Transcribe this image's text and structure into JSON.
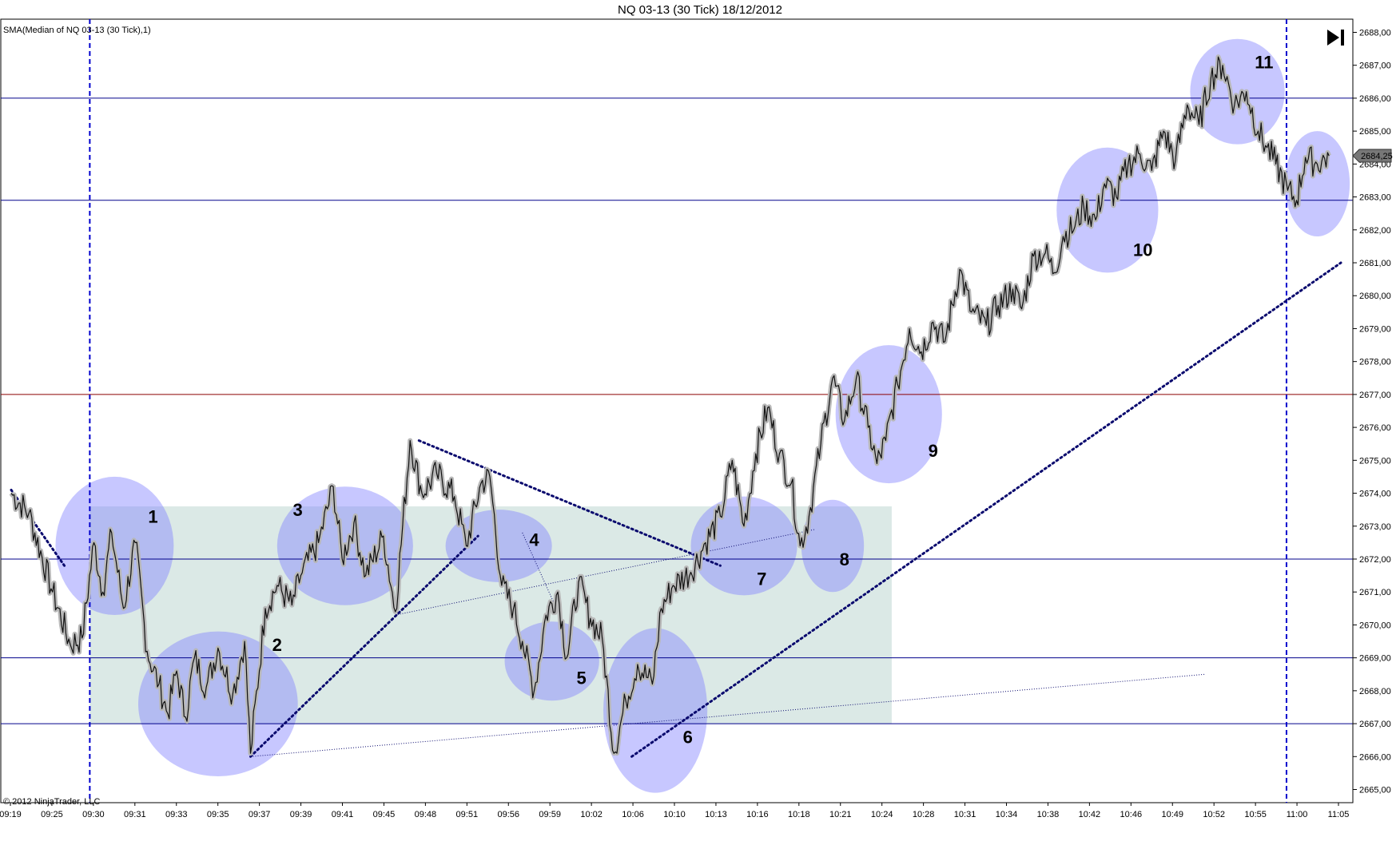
{
  "window": {
    "title": "NQ 03-13 (30 Tick)  18/12/2012",
    "indicator_label": "SMA(Median of NQ 03-13 (30 Tick),1)",
    "copyright": "© 2012 NinjaTrader, LLC",
    "goto_end_icon": "skip-to-end-icon"
  },
  "chart_data": {
    "type": "line",
    "title": "NQ 03-13 (30 Tick)  18/12/2012",
    "series": [
      {
        "name": "SMA(Median of NQ 03-13 (30 Tick),1)",
        "points": [
          [
            0,
            2674.0
          ],
          [
            3,
            2673.4
          ],
          [
            7,
            2671.0
          ],
          [
            10,
            2669.4
          ],
          [
            12,
            2669.6
          ],
          [
            14,
            2672.5
          ],
          [
            15.5,
            2671.0
          ],
          [
            17,
            2672.8
          ],
          [
            19,
            2670.5
          ],
          [
            21,
            2672.5
          ],
          [
            23,
            2669.2
          ],
          [
            25,
            2668.2
          ],
          [
            26.5,
            2667.3
          ],
          [
            28,
            2668.6
          ],
          [
            29.5,
            2667.2
          ],
          [
            31,
            2669.0
          ],
          [
            33,
            2668.1
          ],
          [
            35,
            2669.3
          ],
          [
            37.5,
            2667.9
          ],
          [
            39.5,
            2669.5
          ],
          [
            40.5,
            2666.1
          ],
          [
            43,
            2670.5
          ],
          [
            45,
            2671.2
          ],
          [
            47.5,
            2670.6
          ],
          [
            49,
            2671.5
          ],
          [
            52,
            2672.5
          ],
          [
            54.5,
            2674.2
          ],
          [
            56,
            2672.0
          ],
          [
            58,
            2673.1
          ],
          [
            60,
            2671.5
          ],
          [
            63,
            2672.7
          ],
          [
            65,
            2670.4
          ],
          [
            67.5,
            2675.6
          ],
          [
            69.5,
            2674.0
          ],
          [
            72,
            2674.6
          ],
          [
            75,
            2673.9
          ],
          [
            77,
            2672.4
          ],
          [
            79.5,
            2674.3
          ],
          [
            81,
            2674.5
          ],
          [
            83,
            2671.2
          ],
          [
            85,
            2670.5
          ],
          [
            86.5,
            2669.5
          ],
          [
            88.5,
            2668.0
          ],
          [
            90.5,
            2670.3
          ],
          [
            92.5,
            2671.0
          ],
          [
            94,
            2669.0
          ],
          [
            96,
            2671.3
          ],
          [
            98,
            2670.2
          ],
          [
            100,
            2669.6
          ],
          [
            102,
            2666.1
          ],
          [
            104,
            2667.7
          ],
          [
            106,
            2668.8
          ],
          [
            108.5,
            2668.2
          ],
          [
            110,
            2670.5
          ],
          [
            112,
            2671.2
          ],
          [
            115,
            2671.6
          ],
          [
            117.5,
            2672.5
          ],
          [
            120,
            2673.3
          ],
          [
            122,
            2675.0
          ],
          [
            124,
            2673.0
          ],
          [
            126,
            2675.2
          ],
          [
            128,
            2676.6
          ],
          [
            130,
            2675.2
          ],
          [
            132,
            2674.3
          ],
          [
            133.5,
            2672.4
          ],
          [
            135,
            2673.3
          ],
          [
            137,
            2675.5
          ],
          [
            139,
            2677.5
          ],
          [
            141,
            2676.2
          ],
          [
            143,
            2677.5
          ],
          [
            145,
            2676.0
          ],
          [
            146.5,
            2674.9
          ],
          [
            148,
            2675.6
          ],
          [
            150,
            2677.3
          ],
          [
            152,
            2679.0
          ],
          [
            154,
            2678.3
          ],
          [
            156,
            2679.2
          ],
          [
            158,
            2678.6
          ],
          [
            160.5,
            2680.8
          ],
          [
            162.5,
            2679.5
          ],
          [
            165,
            2679.1
          ],
          [
            167,
            2679.7
          ],
          [
            169.5,
            2680.2
          ],
          [
            171,
            2679.6
          ],
          [
            173,
            2681.2
          ],
          [
            175,
            2681.3
          ],
          [
            176.5,
            2680.7
          ],
          [
            178,
            2681.8
          ],
          [
            180,
            2682.1
          ],
          [
            181.5,
            2682.7
          ],
          [
            183.5,
            2682.3
          ],
          [
            185,
            2683.4
          ],
          [
            187,
            2683.0
          ],
          [
            189,
            2684.0
          ],
          [
            191,
            2684.3
          ],
          [
            193,
            2683.8
          ],
          [
            195,
            2685.0
          ],
          [
            197,
            2684.1
          ],
          [
            199,
            2685.8
          ],
          [
            201,
            2685.2
          ],
          [
            203,
            2686.6
          ],
          [
            205,
            2687.0
          ],
          [
            207,
            2685.8
          ],
          [
            209,
            2686.2
          ],
          [
            211,
            2685.0
          ],
          [
            212.5,
            2684.5
          ],
          [
            214,
            2684.0
          ],
          [
            216,
            2683.2
          ],
          [
            217.5,
            2682.9
          ],
          [
            219,
            2684.2
          ],
          [
            221,
            2684.0
          ],
          [
            223,
            2684.25
          ]
        ]
      }
    ],
    "last_price": "2684,25",
    "x_ticks": [
      "09:19",
      "09:25",
      "09:30",
      "09:31",
      "09:33",
      "09:35",
      "09:37",
      "09:39",
      "09:41",
      "09:45",
      "09:48",
      "09:51",
      "09:56",
      "09:59",
      "10:02",
      "10:06",
      "10:10",
      "10:13",
      "10:16",
      "10:18",
      "10:21",
      "10:24",
      "10:28",
      "10:31",
      "10:34",
      "10:38",
      "10:42",
      "10:46",
      "10:49",
      "10:52",
      "10:55",
      "11:00",
      "11:05"
    ],
    "y_ticks": [
      "2665,00",
      "2666,00",
      "2667,00",
      "2668,00",
      "2669,00",
      "2670,00",
      "2671,00",
      "2672,00",
      "2673,00",
      "2674,00",
      "2675,00",
      "2676,00",
      "2677,00",
      "2678,00",
      "2679,00",
      "2680,00",
      "2681,00",
      "2682,00",
      "2683,00",
      "2684,00",
      "2685,00",
      "2686,00",
      "2687,00",
      "2688,00"
    ],
    "ylim": [
      2664.6,
      2688.4
    ],
    "xlim": [
      0,
      225
    ],
    "grid": false,
    "horizontal_lines": [
      {
        "price": 2686.0,
        "color": "#00008b"
      },
      {
        "price": 2682.9,
        "color": "#00008b"
      },
      {
        "price": 2677.0,
        "color": "#8b0000"
      },
      {
        "price": 2672.0,
        "color": "#00008b"
      },
      {
        "price": 2669.0,
        "color": "#00008b"
      },
      {
        "price": 2667.0,
        "color": "#00008b"
      }
    ],
    "vertical_lines": [
      {
        "bar": 13.3,
        "style": "dashed",
        "color": "#0000cd"
      },
      {
        "bar": 215.8,
        "style": "dashed",
        "color": "#0000cd"
      }
    ],
    "range_box": {
      "x0": 13.3,
      "x1": 149,
      "y0": 2667.0,
      "y1": 2673.6,
      "color": "#dbe9e6"
    },
    "trend_lines": [
      {
        "from": [
          0,
          2674.1
        ],
        "to": [
          9,
          2671.8
        ],
        "style": "dotted-thick"
      },
      {
        "from": [
          40.5,
          2666.0
        ],
        "to": [
          79,
          2672.7
        ],
        "style": "dotted-thick"
      },
      {
        "from": [
          69,
          2675.6
        ],
        "to": [
          120,
          2671.8
        ],
        "style": "dotted-thick"
      },
      {
        "from": [
          105,
          2666.0
        ],
        "to": [
          225,
          2681.0
        ],
        "style": "dotted-thick"
      },
      {
        "from": [
          40.5,
          2666.0
        ],
        "to": [
          202,
          2668.5
        ],
        "style": "dotted-thin"
      },
      {
        "from": [
          65,
          2670.3
        ],
        "to": [
          136,
          2672.9
        ],
        "style": "dotted-thin"
      },
      {
        "from": [
          86.5,
          2672.8
        ],
        "to": [
          92,
          2670.6
        ],
        "style": "dotted-thin"
      }
    ],
    "highlight_ellipses": [
      {
        "label": "1",
        "center": [
          17.5,
          2672.4
        ],
        "radii": [
          10,
          2.1
        ],
        "label_at": [
          24,
          2673.3
        ]
      },
      {
        "label": "2",
        "center": [
          35,
          2667.6
        ],
        "radii": [
          13.5,
          2.2
        ],
        "label_at": [
          45,
          2669.4
        ]
      },
      {
        "label": "3",
        "center": [
          56.5,
          2672.4
        ],
        "radii": [
          11.5,
          1.8
        ],
        "label_at": [
          48.5,
          2673.5
        ]
      },
      {
        "label": "4",
        "center": [
          82.5,
          2672.4
        ],
        "radii": [
          9,
          1.1
        ],
        "label_at": [
          88.5,
          2672.6
        ]
      },
      {
        "label": "5",
        "center": [
          91.5,
          2668.9
        ],
        "radii": [
          8,
          1.2
        ],
        "label_at": [
          96.5,
          2668.4
        ]
      },
      {
        "label": "6",
        "center": [
          109,
          2667.4
        ],
        "radii": [
          8.8,
          2.5
        ],
        "label_at": [
          114.5,
          2666.6
        ]
      },
      {
        "label": "7",
        "center": [
          124,
          2672.4
        ],
        "radii": [
          9,
          1.5
        ],
        "label_at": [
          127,
          2671.4
        ]
      },
      {
        "label": "8",
        "center": [
          139,
          2672.4
        ],
        "radii": [
          5.3,
          1.4
        ],
        "label_at": [
          141,
          2672.0
        ]
      },
      {
        "label": "9",
        "center": [
          148.5,
          2676.4
        ],
        "radii": [
          9,
          2.1
        ],
        "label_at": [
          156,
          2675.3
        ]
      },
      {
        "label": "10",
        "center": [
          185.5,
          2682.6
        ],
        "radii": [
          8.6,
          1.9
        ],
        "label_at": [
          191.5,
          2681.4
        ]
      },
      {
        "label": "11",
        "center": [
          207.5,
          2686.2
        ],
        "radii": [
          8,
          1.6
        ],
        "label_at": [
          212,
          2687.1
        ]
      },
      {
        "label": "",
        "center": [
          221,
          2683.4
        ],
        "radii": [
          5.5,
          1.6
        ],
        "label_at": [
          221,
          2683.4
        ]
      }
    ]
  }
}
